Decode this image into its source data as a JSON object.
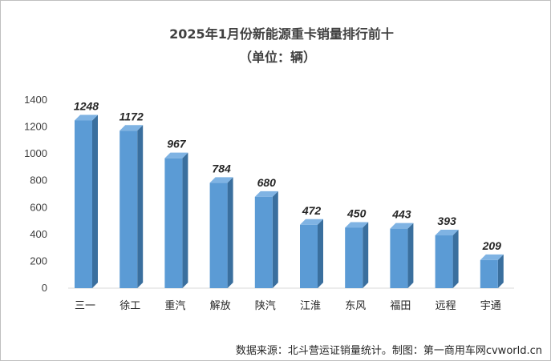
{
  "chart_data": {
    "type": "bar",
    "title": "2025年1月份新能源重卡销量排行前十",
    "subtitle": "（单位：辆）",
    "categories": [
      "三一",
      "徐工",
      "重汽",
      "解放",
      "陕汽",
      "江淮",
      "东风",
      "福田",
      "远程",
      "宇通"
    ],
    "values": [
      1248,
      1172,
      967,
      784,
      680,
      472,
      450,
      443,
      393,
      209
    ],
    "ylim": [
      0,
      1400
    ],
    "yticks": [
      0,
      200,
      400,
      600,
      800,
      1000,
      1200,
      1400
    ],
    "xlabel": "",
    "ylabel": "",
    "grid": false,
    "legend": "none",
    "bar_color": "#5b9bd5",
    "bar_side_color": "#3a6f9e",
    "bar_top_color": "#7fb3e3",
    "source": "数据来源：北斗营运证销量统计。制图：第一商用车网cvworld.cn"
  }
}
